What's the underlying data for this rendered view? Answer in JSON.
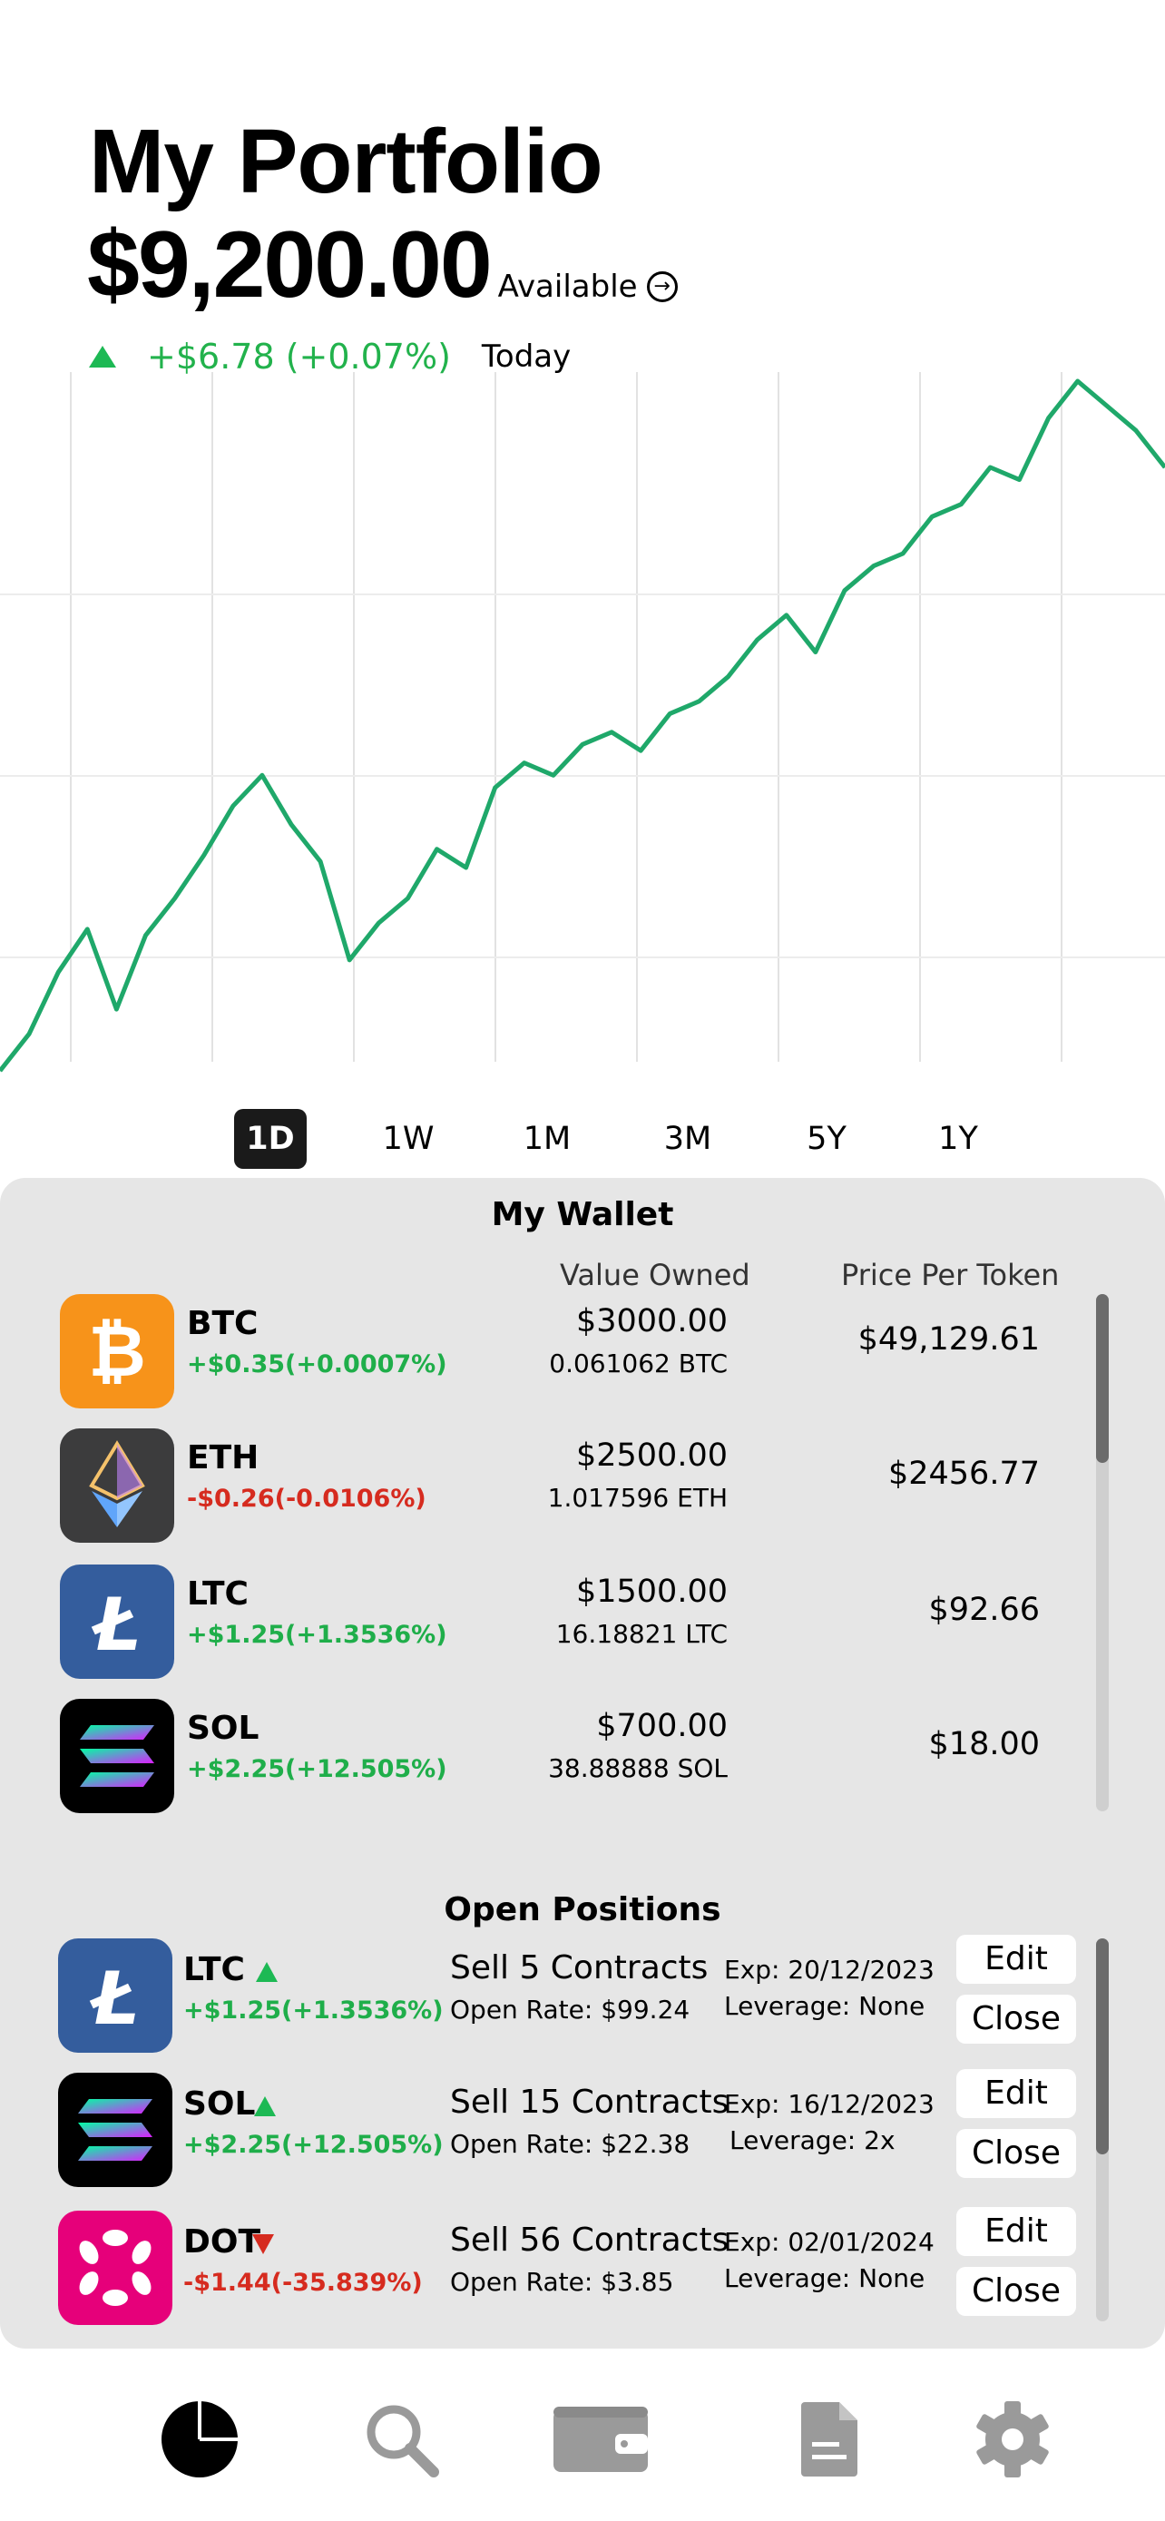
{
  "header": {
    "title": "My Portfolio",
    "balance": "$9,200.00",
    "available_label": "Available",
    "change": "+$6.78 (+0.07%)",
    "period_label": "Today"
  },
  "chart_data": {
    "type": "line",
    "color": "#1fa86a",
    "grid": true,
    "x": [
      0,
      5,
      10,
      15,
      20,
      25,
      30,
      35,
      40,
      45,
      50,
      55,
      60,
      65,
      70,
      75,
      80,
      85,
      90,
      95,
      100,
      105,
      110,
      115,
      120,
      125,
      130,
      135,
      140,
      145,
      150,
      155,
      160,
      165,
      170,
      175,
      180,
      185,
      190,
      195,
      200
    ],
    "values": [
      12,
      18,
      28,
      35,
      22,
      34,
      40,
      47,
      55,
      60,
      52,
      46,
      30,
      36,
      40,
      48,
      45,
      58,
      62,
      60,
      65,
      67,
      64,
      70,
      72,
      76,
      82,
      86,
      80,
      90,
      94,
      96,
      102,
      104,
      110,
      108,
      118,
      124,
      120,
      116,
      110
    ]
  },
  "ranges": [
    {
      "label": "1D",
      "active": true
    },
    {
      "label": "1W",
      "active": false
    },
    {
      "label": "1M",
      "active": false
    },
    {
      "label": "3M",
      "active": false
    },
    {
      "label": "5Y",
      "active": false
    },
    {
      "label": "1Y",
      "active": false
    }
  ],
  "wallet": {
    "title": "My Wallet",
    "col_value": "Value Owned",
    "col_price": "Price Per Token",
    "items": [
      {
        "symbol": "BTC",
        "change": "+$0.35(+0.0007%)",
        "dir": "up",
        "value": "$3000.00",
        "qty": "0.061062 BTC",
        "price": "$49,129.61",
        "icon": "bitcoin-icon",
        "bg": "#f7931a"
      },
      {
        "symbol": "ETH",
        "change": "-$0.26(-0.0106%)",
        "dir": "down",
        "value": "$2500.00",
        "qty": "1.017596 ETH",
        "price": "$2456.77",
        "icon": "ethereum-icon",
        "bg": "#3c3c3d"
      },
      {
        "symbol": "LTC",
        "change": "+$1.25(+1.3536%)",
        "dir": "up",
        "value": "$1500.00",
        "qty": "16.18821 LTC",
        "price": "$92.66",
        "icon": "litecoin-icon",
        "bg": "#345d9d"
      },
      {
        "symbol": "SOL",
        "change": "+$2.25(+12.505%)",
        "dir": "up",
        "value": "$700.00",
        "qty": "38.88888 SOL",
        "price": "$18.00",
        "icon": "solana-icon",
        "bg": "#000000"
      }
    ]
  },
  "positions": {
    "title": "Open Positions",
    "edit_label": "Edit",
    "close_label": "Close",
    "items": [
      {
        "symbol": "LTC",
        "change": "+$1.25(+1.3536%)",
        "dir": "up",
        "action": "Sell 5 Contracts",
        "open_rate": "Open Rate: $99.24",
        "exp": "Exp: 20/12/2023",
        "leverage": "Leverage: None",
        "icon": "litecoin-icon",
        "bg": "#345d9d"
      },
      {
        "symbol": "SOL",
        "change": "+$2.25(+12.505%)",
        "dir": "up",
        "action": "Sell 15 Contracts",
        "open_rate": "Open Rate: $22.38",
        "exp": "Exp: 16/12/2023",
        "leverage": "Leverage: 2x",
        "icon": "solana-icon",
        "bg": "#000000"
      },
      {
        "symbol": "DOT",
        "change": "-$1.44(-35.839%)",
        "dir": "down",
        "action": "Sell 56 Contracts",
        "open_rate": "Open Rate: $3.85",
        "exp": "Exp: 02/01/2024",
        "leverage": "Leverage: None",
        "icon": "polkadot-icon",
        "bg": "#e6007a"
      }
    ]
  },
  "tabbar": {
    "items": [
      {
        "icon": "pie-chart-icon",
        "active": true
      },
      {
        "icon": "search-icon",
        "active": false
      },
      {
        "icon": "wallet-icon",
        "active": false
      },
      {
        "icon": "document-icon",
        "active": false
      },
      {
        "icon": "gear-icon",
        "active": false
      }
    ]
  }
}
